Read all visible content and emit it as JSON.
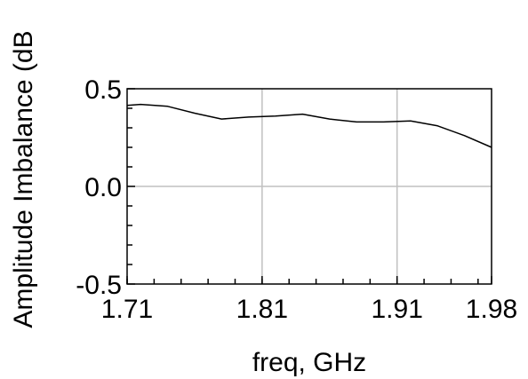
{
  "chart_data": {
    "type": "line",
    "xlabel": "freq, GHz",
    "ylabel": "Amplitude Imbalance (dB",
    "xlim": [
      1.71,
      1.98
    ],
    "ylim": [
      -0.5,
      0.5
    ],
    "x_tick_labels": [
      "1.71",
      "1.81",
      "1.91",
      "1.98"
    ],
    "x_ticks": [
      1.71,
      1.81,
      1.91,
      1.98
    ],
    "y_tick_labels": [
      "0.5",
      "0.0",
      "-0.5"
    ],
    "y_ticks": [
      0.5,
      0.0,
      -0.5
    ],
    "grid": true,
    "series": [
      {
        "x": [
          1.71,
          1.72,
          1.74,
          1.76,
          1.78,
          1.8,
          1.82,
          1.84,
          1.86,
          1.88,
          1.9,
          1.92,
          1.94,
          1.96,
          1.98
        ],
        "y": [
          0.415,
          0.42,
          0.41,
          0.375,
          0.345,
          0.355,
          0.36,
          0.37,
          0.345,
          0.33,
          0.33,
          0.335,
          0.31,
          0.26,
          0.2
        ]
      }
    ]
  },
  "colors": {
    "line": "#000000",
    "grid": "#c0c0c0",
    "axis": "#000000"
  }
}
